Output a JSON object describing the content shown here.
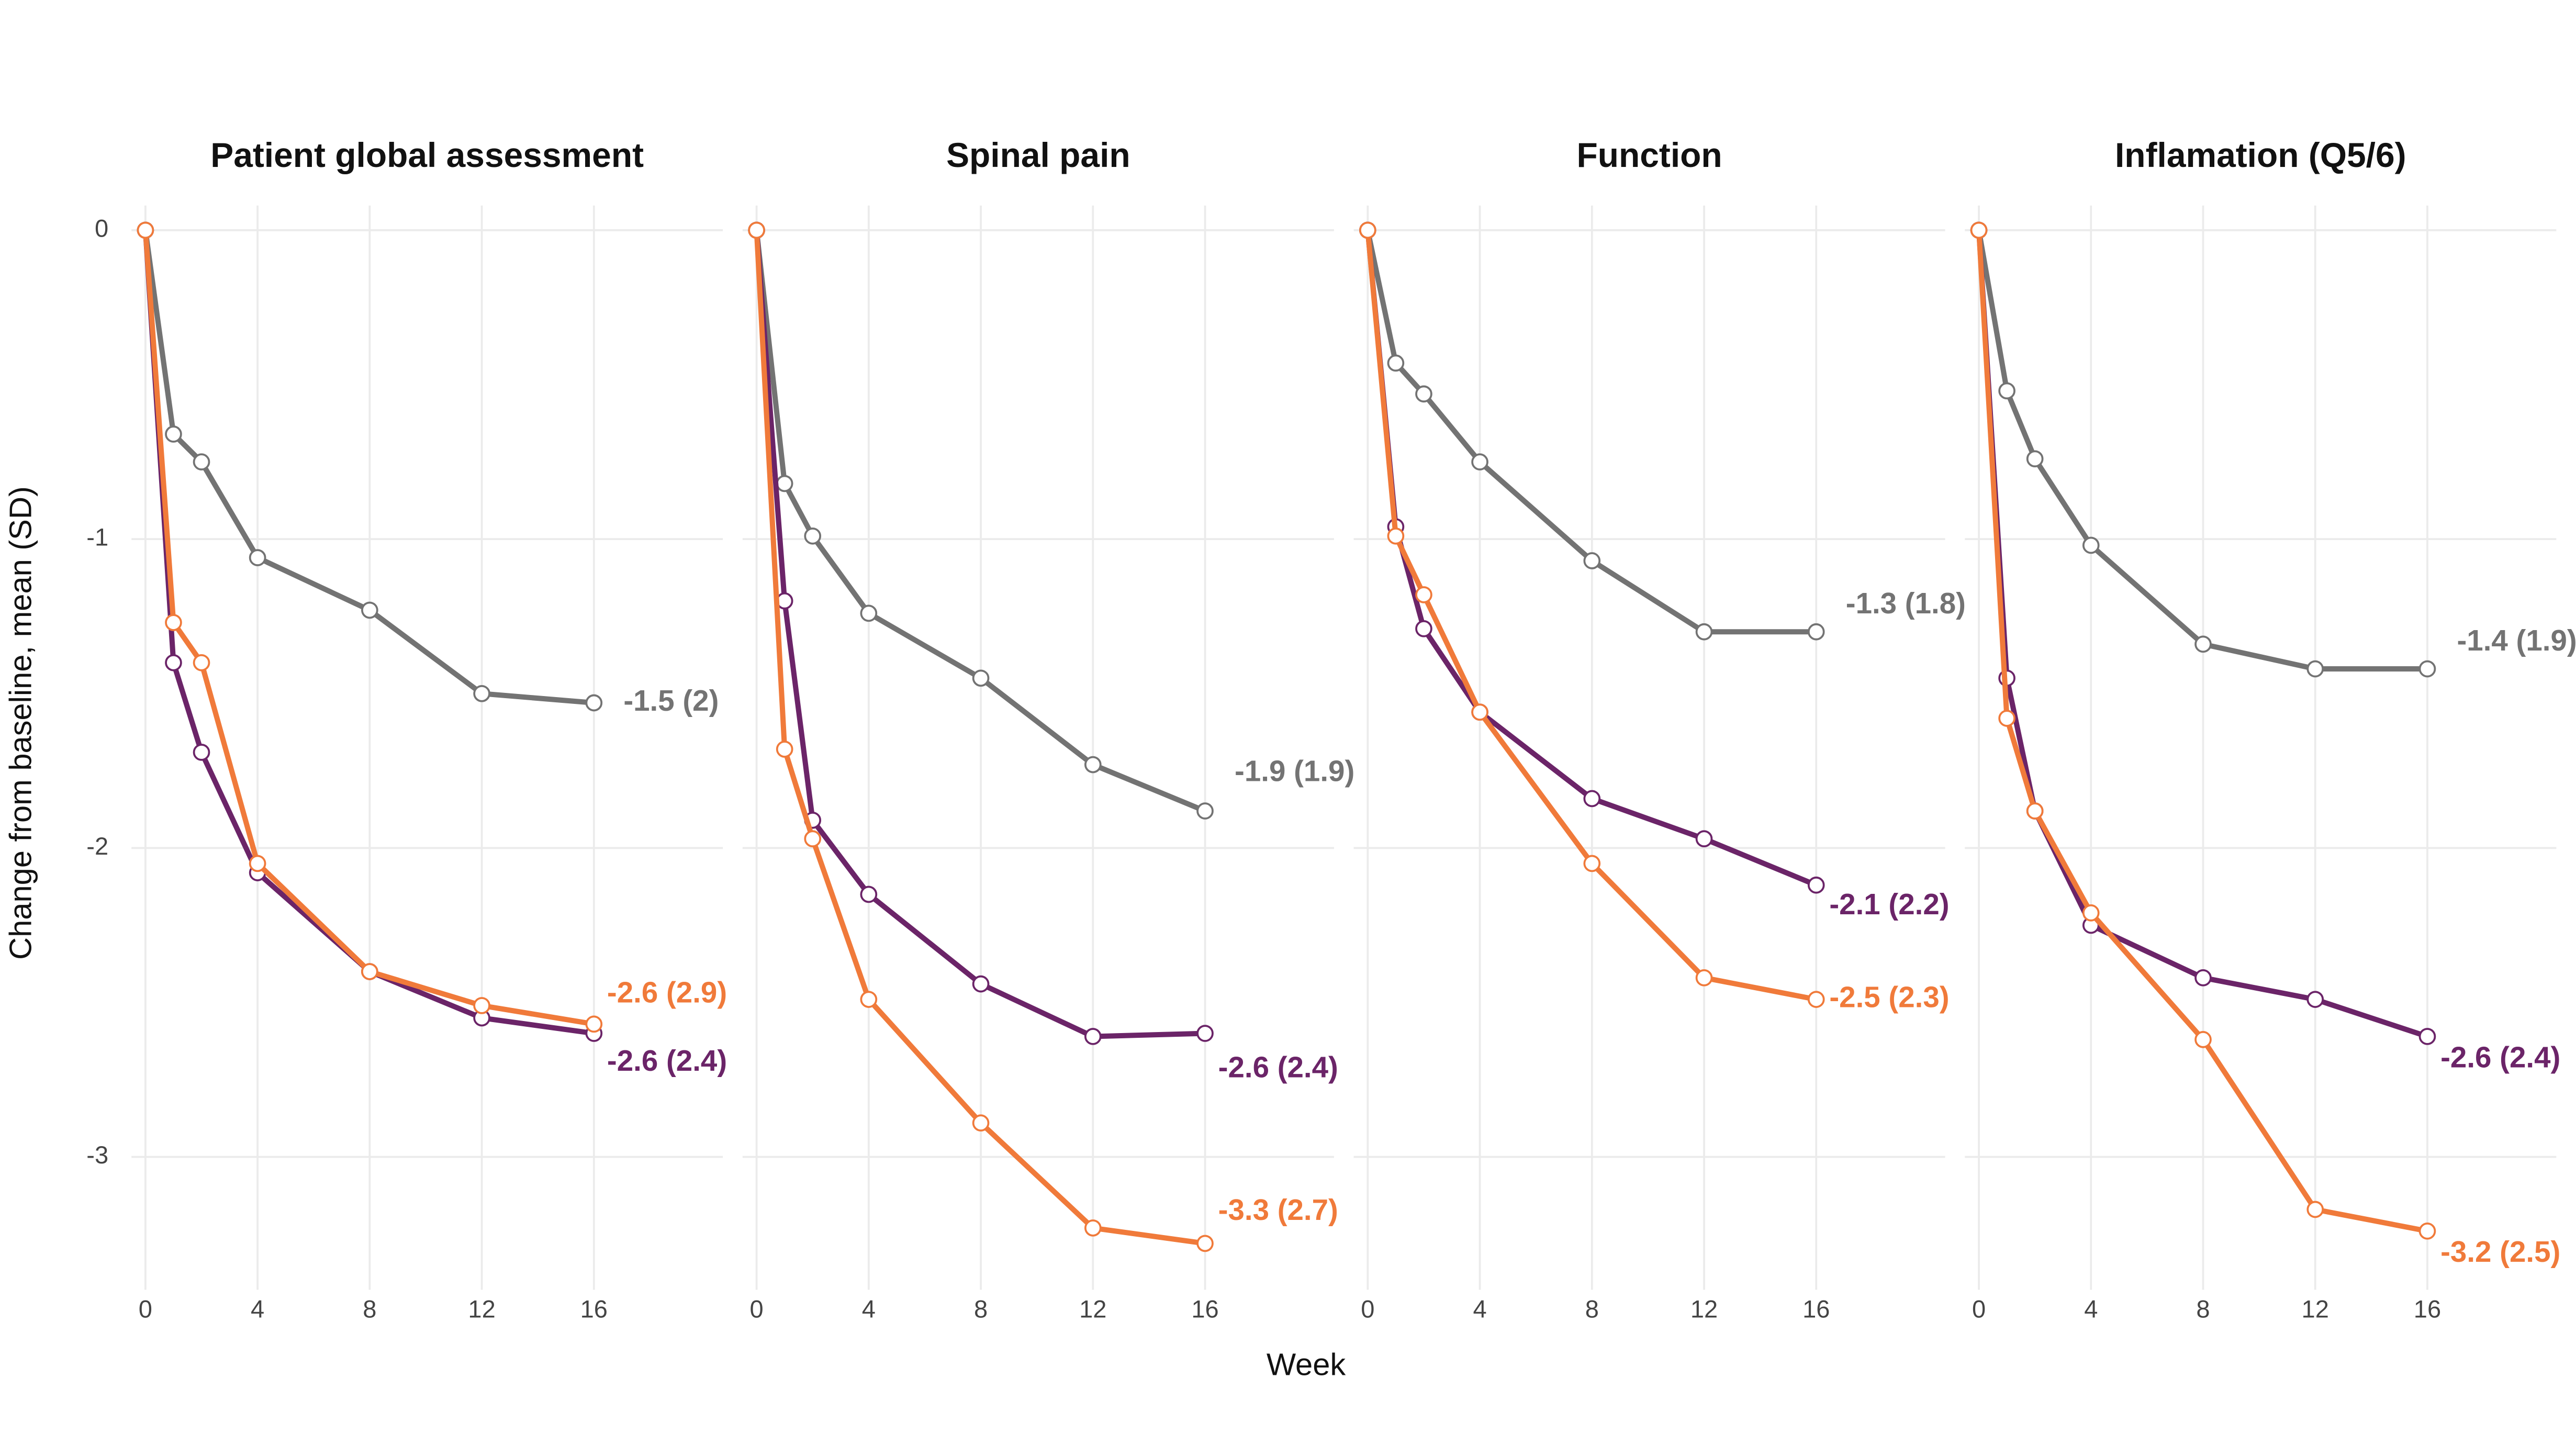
{
  "y_label": "Change from baseline, mean (SD)",
  "x_label": "Week",
  "chart_data": [
    {
      "type": "line",
      "title": "Patient global assessment",
      "x": [
        0,
        1,
        2,
        4,
        8,
        12,
        16
      ],
      "xlim": [
        -0.5,
        20.6
      ],
      "ylim": [
        -3.43,
        0.08
      ],
      "xticks": [
        0,
        4,
        8,
        12,
        16
      ],
      "yticks": [
        0,
        -1,
        -2,
        -3
      ],
      "grid": true,
      "series": [
        {
          "color": "#737373",
          "values": [
            0,
            -0.66,
            -0.75,
            -1.06,
            -1.23,
            -1.5,
            -1.53
          ],
          "end_label": "-1.5 (2)"
        },
        {
          "color": "#6b2468",
          "values": [
            0,
            -1.4,
            -1.69,
            -2.08,
            -2.4,
            -2.55,
            -2.6
          ],
          "end_label": "-2.6 (2.4)"
        },
        {
          "color": "#f07a3a",
          "values": [
            0,
            -1.27,
            -1.4,
            -2.05,
            -2.4,
            -2.51,
            -2.57
          ],
          "end_label": "-2.6 (2.9)"
        }
      ]
    },
    {
      "type": "line",
      "title": "Spinal pain",
      "x": [
        0,
        1,
        2,
        4,
        8,
        12,
        16
      ],
      "xlim": [
        -0.5,
        20.6
      ],
      "ylim": [
        -3.43,
        0.08
      ],
      "xticks": [
        0,
        4,
        8,
        12,
        16
      ],
      "yticks": [
        0,
        -1,
        -2,
        -3
      ],
      "grid": true,
      "series": [
        {
          "color": "#737373",
          "values": [
            0,
            -0.82,
            -0.99,
            -1.24,
            -1.45,
            -1.73,
            -1.88
          ],
          "end_label": "-1.9 (1.9)"
        },
        {
          "color": "#6b2468",
          "values": [
            0,
            -1.2,
            -1.91,
            -2.15,
            -2.44,
            -2.61,
            -2.6
          ],
          "end_label": "-2.6 (2.4)"
        },
        {
          "color": "#f07a3a",
          "values": [
            0,
            -1.68,
            -1.97,
            -2.49,
            -2.89,
            -3.23,
            -3.28
          ],
          "end_label": "-3.3 (2.7)"
        }
      ]
    },
    {
      "type": "line",
      "title": "Function",
      "x": [
        0,
        1,
        2,
        4,
        8,
        12,
        16
      ],
      "xlim": [
        -0.5,
        20.6
      ],
      "ylim": [
        -3.43,
        0.08
      ],
      "xticks": [
        0,
        4,
        8,
        12,
        16
      ],
      "yticks": [
        0,
        -1,
        -2,
        -3
      ],
      "grid": true,
      "series": [
        {
          "color": "#737373",
          "values": [
            0,
            -0.43,
            -0.53,
            -0.75,
            -1.07,
            -1.3,
            -1.3
          ],
          "end_label": "-1.3 (1.8)"
        },
        {
          "color": "#6b2468",
          "values": [
            0,
            -0.96,
            -1.29,
            -1.56,
            -1.84,
            -1.97,
            -2.12
          ],
          "end_label": "-2.1 (2.2)"
        },
        {
          "color": "#f07a3a",
          "values": [
            0,
            -0.99,
            -1.18,
            -1.56,
            -2.05,
            -2.42,
            -2.49
          ],
          "end_label": "-2.5 (2.3)"
        }
      ]
    },
    {
      "type": "line",
      "title": "Inflamation (Q5/6)",
      "x": [
        0,
        1,
        2,
        4,
        8,
        12,
        16
      ],
      "xlim": [
        -0.5,
        20.6
      ],
      "ylim": [
        -3.43,
        0.08
      ],
      "xticks": [
        0,
        4,
        8,
        12,
        16
      ],
      "yticks": [
        0,
        -1,
        -2,
        -3
      ],
      "grid": true,
      "series": [
        {
          "color": "#737373",
          "values": [
            0,
            -0.52,
            -0.74,
            -1.02,
            -1.34,
            -1.42,
            -1.42
          ],
          "end_label": "-1.4 (1.9)"
        },
        {
          "color": "#6b2468",
          "values": [
            0,
            -1.45,
            -1.88,
            -2.25,
            -2.42,
            -2.49,
            -2.61
          ],
          "end_label": "-2.6 (2.4)"
        },
        {
          "color": "#f07a3a",
          "values": [
            0,
            -1.58,
            -1.88,
            -2.21,
            -2.62,
            -3.17,
            -3.24
          ],
          "end_label": "-3.2 (2.5)"
        }
      ]
    }
  ]
}
